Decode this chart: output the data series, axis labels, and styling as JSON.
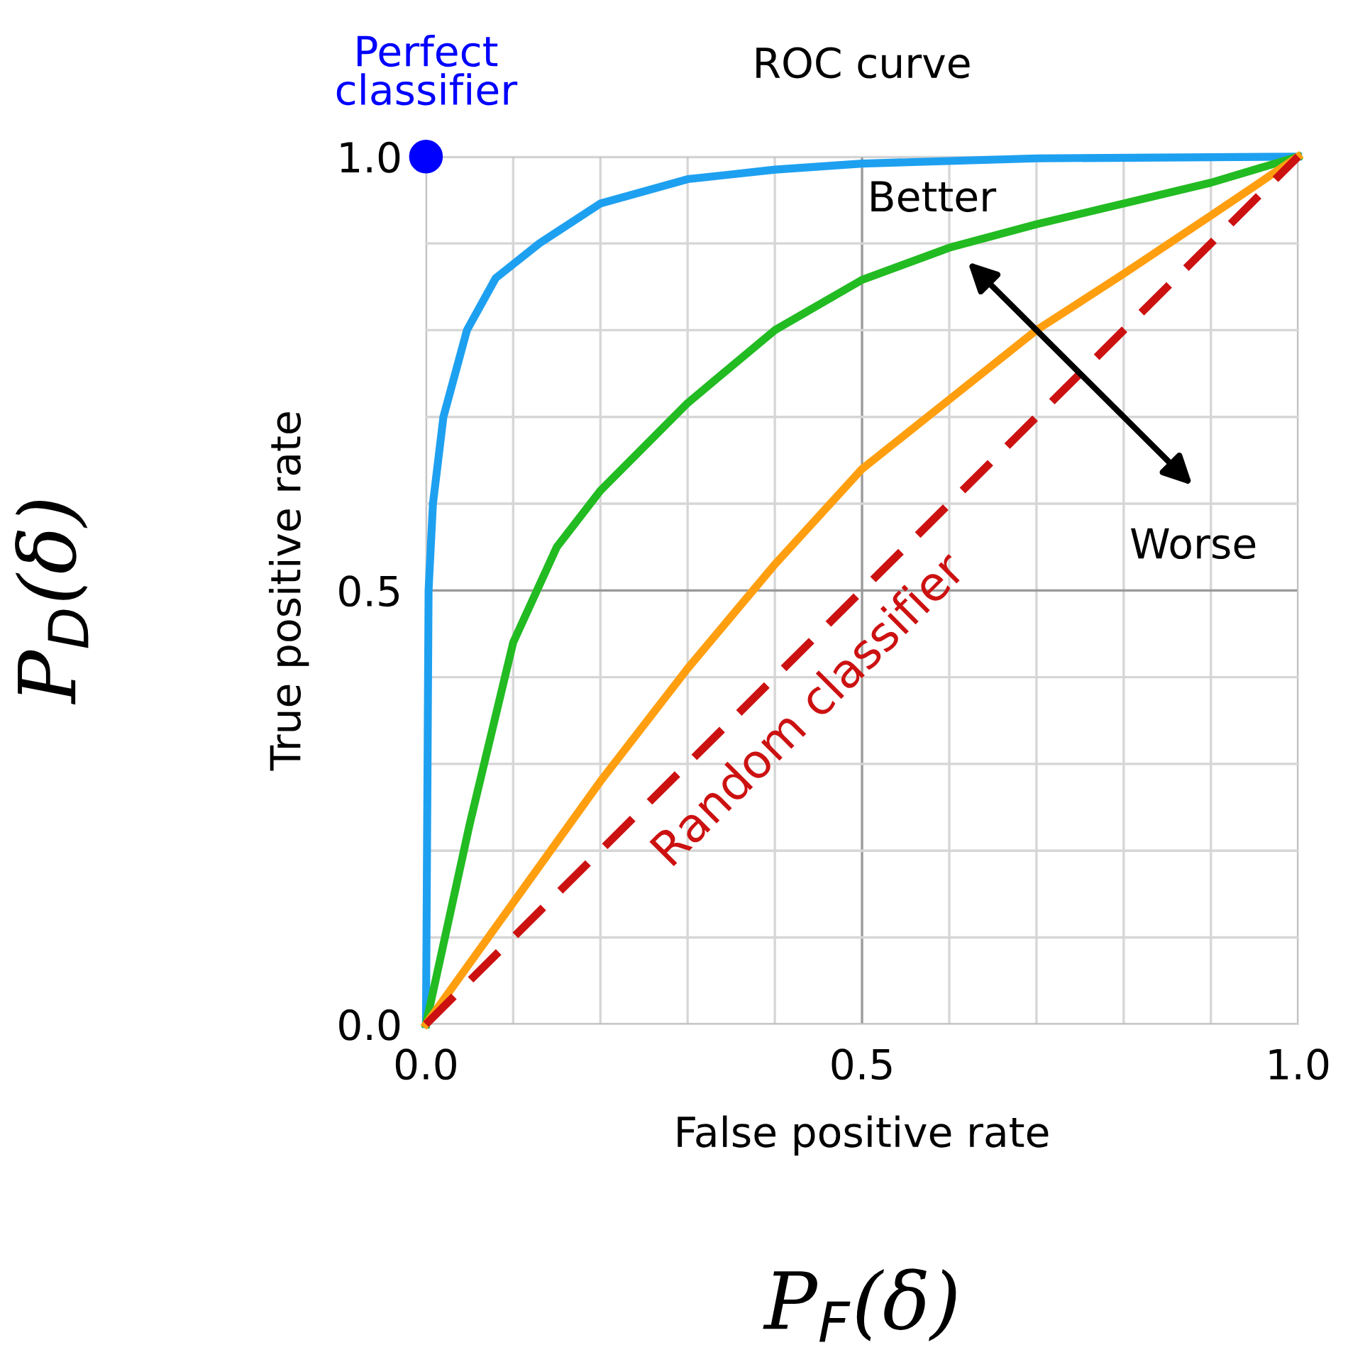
{
  "chart_data": {
    "type": "line",
    "title": "ROC curve",
    "xlabel": "False positive rate",
    "ylabel": "True positive rate",
    "xlim": [
      0,
      1
    ],
    "ylim": [
      0,
      1
    ],
    "xticks": [
      {
        "value": 0,
        "label": "0.0"
      },
      {
        "value": 0.1,
        "label": null
      },
      {
        "value": 0.2,
        "label": null
      },
      {
        "value": 0.3,
        "label": null
      },
      {
        "value": 0.4,
        "label": null
      },
      {
        "value": 0.5,
        "label": "0.5"
      },
      {
        "value": 0.6,
        "label": null
      },
      {
        "value": 0.7,
        "label": null
      },
      {
        "value": 0.8,
        "label": null
      },
      {
        "value": 0.9,
        "label": null
      },
      {
        "value": 1.0,
        "label": "1.0"
      }
    ],
    "yticks": [
      {
        "value": 0,
        "label": "0.0"
      },
      {
        "value": 0.1,
        "label": null
      },
      {
        "value": 0.2,
        "label": null
      },
      {
        "value": 0.3,
        "label": null
      },
      {
        "value": 0.4,
        "label": null
      },
      {
        "value": 0.5,
        "label": "0.5"
      },
      {
        "value": 0.6,
        "label": null
      },
      {
        "value": 0.7,
        "label": null
      },
      {
        "value": 0.8,
        "label": null
      },
      {
        "value": 0.9,
        "label": null
      },
      {
        "value": 1.0,
        "label": "1.0"
      }
    ],
    "grid": true,
    "marker": "none",
    "series": [
      {
        "color": "#1ea0f0",
        "x": [
          0,
          0.003,
          0.008,
          0.02,
          0.047,
          0.08,
          0.13,
          0.2,
          0.3,
          0.4,
          0.5,
          0.7,
          1.0
        ],
        "values": [
          0,
          0.5,
          0.6,
          0.7,
          0.8,
          0.86,
          0.9,
          0.946,
          0.974,
          0.985,
          0.992,
          0.998,
          1.0
        ]
      },
      {
        "color": "#22bb22",
        "x": [
          0,
          0.05,
          0.1,
          0.15,
          0.2,
          0.3,
          0.4,
          0.5,
          0.6,
          0.7,
          0.8,
          0.9,
          1.0
        ],
        "values": [
          0,
          0.23,
          0.44,
          0.55,
          0.615,
          0.716,
          0.8,
          0.858,
          0.895,
          0.922,
          0.946,
          0.97,
          1.0
        ]
      },
      {
        "color": "#ff9f10",
        "x": [
          0,
          0.1,
          0.2,
          0.3,
          0.4,
          0.5,
          0.6,
          0.7,
          0.8,
          0.9,
          1.0
        ],
        "values": [
          0,
          0.14,
          0.28,
          0.41,
          0.53,
          0.64,
          0.72,
          0.8,
          0.865,
          0.932,
          1.0
        ]
      },
      {
        "color": "#cc1111",
        "line_style": "dashed",
        "x": [
          0,
          1
        ],
        "values": [
          0,
          1
        ]
      },
      {
        "type": "scatter",
        "marker": "circle",
        "color": "#0000ff",
        "x": [
          0
        ],
        "values": [
          1.0
        ]
      }
    ],
    "annotations": [
      {
        "text": "Perfect\nclassifier",
        "x": 0,
        "y": 1.0
      },
      "Better",
      "Worse",
      "Random classifier",
      "P$_{D}$(δ)",
      "P$_{F}$(δ)"
    ]
  }
}
